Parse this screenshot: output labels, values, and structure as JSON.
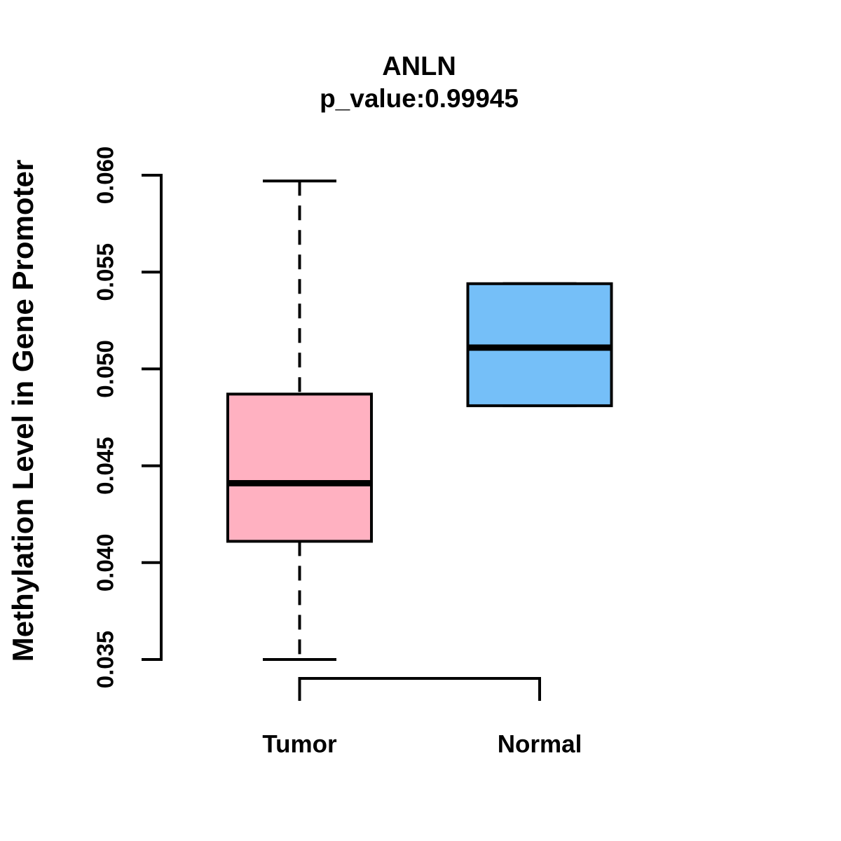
{
  "chart_data": {
    "type": "boxplot",
    "title": "ANLN",
    "subtitle": "p_value:0.99945",
    "ylabel": "Methylation Level in Gene Promoter",
    "xlabel": "",
    "ylim": [
      0.035,
      0.06
    ],
    "yticks": [
      0.035,
      0.04,
      0.045,
      0.05,
      0.055,
      0.06
    ],
    "ytick_labels": [
      "0.035",
      "0.040",
      "0.045",
      "0.050",
      "0.055",
      "0.060"
    ],
    "categories": [
      "Tumor",
      "Normal"
    ],
    "series": [
      {
        "name": "Tumor",
        "color": "#FFB1C1",
        "lower_whisker": 0.035,
        "q1": 0.0411,
        "median": 0.0441,
        "q3": 0.0487,
        "upper_whisker": 0.0597
      },
      {
        "name": "Normal",
        "color": "#75BFF8",
        "lower_whisker": 0.0481,
        "q1": 0.0481,
        "median": 0.0511,
        "q3": 0.0544,
        "upper_whisker": 0.0544
      }
    ],
    "grid": false,
    "legend": null,
    "stroke_color": "#000000",
    "whisker_style": "dashed"
  }
}
